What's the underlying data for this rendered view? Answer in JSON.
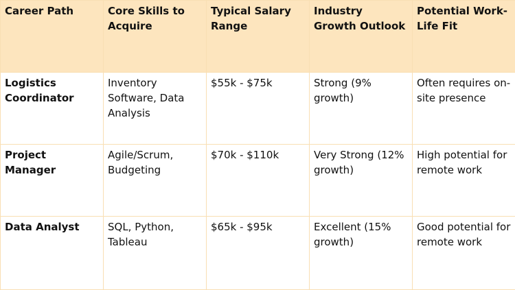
{
  "table": {
    "headers": [
      "Career Path",
      "Core Skills to Acquire",
      "Typical Salary Range",
      "Industry Growth Outlook",
      "Potential Work-Life Fit"
    ],
    "rows": [
      [
        "Logistics Coordinator",
        "Inventory Software, Data Analysis",
        "$55k - $75k",
        "Strong (9% growth)",
        "Often requires on-site presence"
      ],
      [
        "Project Manager",
        "Agile/Scrum, Budgeting",
        "$70k - $110k",
        "Very Strong (12% growth)",
        "High potential for remote work"
      ],
      [
        "Data Analyst",
        "SQL, Python, Tableau",
        "$65k - $95k",
        "Excellent (15% growth)",
        "Good potential for remote work"
      ]
    ]
  },
  "colors": {
    "header_background": "#fde5be",
    "border": "#f9dfb3",
    "text": "#111111"
  }
}
